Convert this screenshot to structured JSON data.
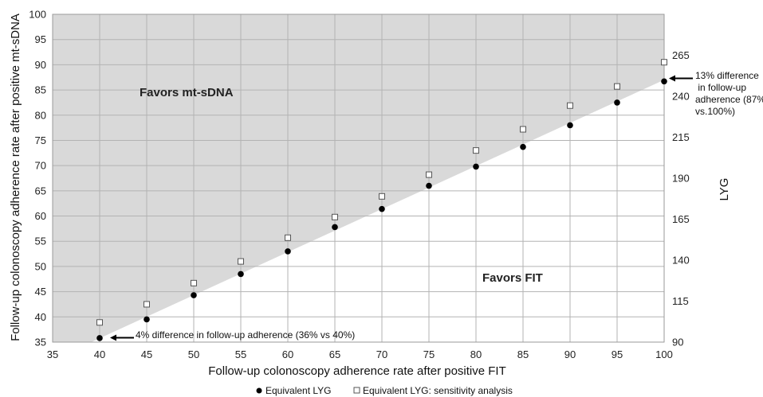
{
  "chart_data": {
    "type": "scatter",
    "xlabel": "Follow-up colonoscopy adherence rate after positive FIT",
    "ylabel": "Follow-up colonoscopy adherence rate after positive mt-sDNA",
    "y2label": "LYG",
    "xlim": [
      35,
      100
    ],
    "ylim": [
      35,
      100
    ],
    "y2lim": [
      90,
      290
    ],
    "x_ticks": [
      "35",
      "40",
      "45",
      "50",
      "55",
      "60",
      "65",
      "70",
      "75",
      "80",
      "85",
      "90",
      "95",
      "100"
    ],
    "y_ticks": [
      "35",
      "40",
      "45",
      "50",
      "55",
      "60",
      "65",
      "70",
      "75",
      "80",
      "85",
      "90",
      "95",
      "100"
    ],
    "y2_ticks": [
      "90",
      "115",
      "140",
      "165",
      "190",
      "215",
      "240",
      "265"
    ],
    "grid": true,
    "shaded_region": {
      "label": "Favors mt-sDNA",
      "fill": "#d9d9d9",
      "boundary": {
        "x": [
          35,
          100
        ],
        "y": [
          31.5,
          87
        ]
      }
    },
    "unshaded_region": {
      "label": "Favors FIT"
    },
    "series": [
      {
        "name": "Equivalent LYG",
        "marker": "filled-circle",
        "color": "#000000",
        "x": [
          40,
          45,
          50,
          55,
          60,
          65,
          70,
          75,
          80,
          85,
          90,
          95,
          100
        ],
        "y": [
          35.8,
          39.5,
          44.3,
          48.5,
          53.0,
          57.8,
          61.4,
          66.0,
          69.8,
          73.7,
          78.0,
          82.5,
          86.7
        ]
      },
      {
        "name": "Equivalent LYG: sensitivity analysis",
        "marker": "open-square",
        "color": "#555555",
        "x": [
          40,
          45,
          50,
          55,
          60,
          65,
          70,
          75,
          80,
          85,
          90,
          95,
          100
        ],
        "y": [
          38.9,
          42.5,
          46.7,
          51.0,
          55.7,
          59.8,
          63.9,
          68.2,
          73.0,
          77.2,
          81.9,
          85.7,
          90.5
        ]
      }
    ],
    "annotations": [
      {
        "text": "4% difference in follow-up adherence (36% vs 40%)",
        "x": 40,
        "y": 35.8
      },
      {
        "lines": [
          "13% difference",
          " in follow-up",
          "adherence (87%",
          "vs.100%)"
        ],
        "x": 100,
        "y": 86.7
      }
    ],
    "legend_placement": "bottom-center"
  }
}
